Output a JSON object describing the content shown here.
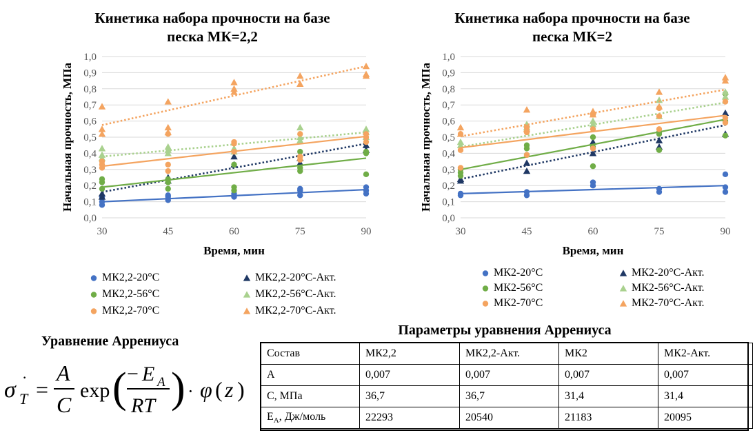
{
  "charts": {
    "left": {
      "title_line1": "Кинетика набора прочности на базе",
      "title_line2": "песка МК=2,2",
      "xlabel": "Время, мин",
      "ylabel": "Начальная прочность, МПа"
    },
    "right": {
      "title_line1": "Кинетика набора прочности на базе",
      "title_line2": "песка МК=2",
      "xlabel": "Время, мин",
      "ylabel": "Начальная прочность, МПа"
    }
  },
  "chart_data": [
    {
      "type": "scatter",
      "title": "Кинетика набора прочности на базе песка МК=2,2",
      "xlabel": "Время, мин",
      "ylabel": "Начальная прочность, МПа",
      "xlim": [
        30,
        90
      ],
      "ylim": [
        0,
        1.0
      ],
      "x_ticks": [
        "30",
        "45",
        "60",
        "75",
        "90"
      ],
      "y_ticks": [
        "0,0",
        "0,1",
        "0,2",
        "0,3",
        "0,4",
        "0,5",
        "0,6",
        "0,7",
        "0,8",
        "0,9",
        "1,0"
      ],
      "grid": true,
      "legend_position": "bottom",
      "series": [
        {
          "name": "МК2,2-20°C",
          "marker": "circle",
          "color": "#4472C4",
          "trend": "solid",
          "x": [
            30,
            30,
            30,
            45,
            45,
            45,
            60,
            60,
            60,
            75,
            75,
            75,
            90,
            90,
            90
          ],
          "y": [
            0.08,
            0.1,
            0.13,
            0.11,
            0.13,
            0.14,
            0.14,
            0.13,
            0.15,
            0.14,
            0.17,
            0.18,
            0.15,
            0.17,
            0.19
          ],
          "trendline": [
            0.1,
            0.175
          ]
        },
        {
          "name": "МК2,2-20°C-Акт.",
          "marker": "triangle",
          "color": "#1F3864",
          "trend": "dotted",
          "x": [
            30,
            30,
            45,
            45,
            60,
            60,
            75,
            75,
            90,
            90
          ],
          "y": [
            0.13,
            0.15,
            0.23,
            0.25,
            0.33,
            0.38,
            0.34,
            0.37,
            0.42,
            0.45
          ],
          "trendline": [
            0.16,
            0.46
          ]
        },
        {
          "name": "МК2,2-56°C",
          "marker": "circle",
          "color": "#70AD47",
          "trend": "solid",
          "x": [
            30,
            30,
            30,
            45,
            45,
            45,
            60,
            60,
            60,
            75,
            75,
            75,
            90,
            90,
            90
          ],
          "y": [
            0.18,
            0.22,
            0.24,
            0.18,
            0.22,
            0.24,
            0.17,
            0.19,
            0.33,
            0.29,
            0.31,
            0.41,
            0.27,
            0.4,
            0.41
          ],
          "trendline": [
            0.19,
            0.37
          ]
        },
        {
          "name": "МК2,2-56°C-Акт.",
          "marker": "triangle",
          "color": "#A9D18E",
          "trend": "dotted",
          "x": [
            30,
            30,
            30,
            45,
            45,
            45,
            60,
            60,
            75,
            75,
            75,
            90,
            90,
            90
          ],
          "y": [
            0.37,
            0.39,
            0.43,
            0.4,
            0.42,
            0.44,
            0.41,
            0.43,
            0.48,
            0.5,
            0.56,
            0.5,
            0.55,
            0.53
          ],
          "trendline": [
            0.38,
            0.53
          ]
        },
        {
          "name": "МК2,2-70°C",
          "marker": "circle",
          "color": "#F4A460",
          "trend": "solid",
          "x": [
            30,
            30,
            30,
            45,
            45,
            45,
            60,
            60,
            60,
            75,
            75,
            75,
            90,
            90,
            90
          ],
          "y": [
            0.31,
            0.33,
            0.35,
            0.29,
            0.33,
            0.52,
            0.41,
            0.46,
            0.47,
            0.36,
            0.38,
            0.52,
            0.47,
            0.5,
            0.52
          ],
          "trendline": [
            0.32,
            0.505
          ]
        },
        {
          "name": "МК2,2-70°C-Акт.",
          "marker": "triangle",
          "color": "#F4A460",
          "trend": "dotted",
          "x": [
            30,
            30,
            30,
            45,
            45,
            45,
            60,
            60,
            60,
            75,
            75,
            90,
            90,
            90
          ],
          "y": [
            0.52,
            0.55,
            0.69,
            0.53,
            0.56,
            0.72,
            0.78,
            0.8,
            0.84,
            0.83,
            0.88,
            0.88,
            0.89,
            0.94
          ],
          "trendline": [
            0.575,
            0.94
          ]
        }
      ]
    },
    {
      "type": "scatter",
      "title": "Кинетика набора прочности на базе песка МК=2",
      "xlabel": "Время, мин",
      "ylabel": "Начальная прочность, МПа",
      "xlim": [
        30,
        90
      ],
      "ylim": [
        0,
        1.0
      ],
      "x_ticks": [
        "30",
        "45",
        "60",
        "75",
        "90"
      ],
      "y_ticks": [
        "0,0",
        "0,1",
        "0,2",
        "0,3",
        "0,4",
        "0,5",
        "0,6",
        "0,7",
        "0,8",
        "0,9",
        "1,0"
      ],
      "grid": true,
      "legend_position": "bottom",
      "series": [
        {
          "name": "МК2-20°C",
          "marker": "circle",
          "color": "#4472C4",
          "trend": "solid",
          "x": [
            30,
            30,
            45,
            45,
            60,
            60,
            75,
            75,
            90,
            90,
            90
          ],
          "y": [
            0.14,
            0.15,
            0.14,
            0.16,
            0.2,
            0.22,
            0.16,
            0.18,
            0.16,
            0.19,
            0.27
          ],
          "trendline": [
            0.15,
            0.2
          ]
        },
        {
          "name": "МК2-20°C-Акт.",
          "marker": "triangle",
          "color": "#1F3864",
          "trend": "dotted",
          "x": [
            30,
            30,
            45,
            45,
            60,
            60,
            75,
            75,
            90,
            90
          ],
          "y": [
            0.23,
            0.24,
            0.29,
            0.34,
            0.4,
            0.47,
            0.44,
            0.48,
            0.52,
            0.65
          ],
          "trendline": [
            0.24,
            0.575
          ]
        },
        {
          "name": "МК2-56°C",
          "marker": "circle",
          "color": "#70AD47",
          "trend": "solid",
          "x": [
            30,
            30,
            30,
            45,
            45,
            45,
            60,
            60,
            60,
            75,
            75,
            75,
            90,
            90,
            90
          ],
          "y": [
            0.26,
            0.28,
            0.3,
            0.39,
            0.43,
            0.45,
            0.32,
            0.44,
            0.5,
            0.42,
            0.52,
            0.53,
            0.51,
            0.6,
            0.77
          ],
          "trendline": [
            0.3,
            0.61
          ]
        },
        {
          "name": "МК2-56°C-Акт.",
          "marker": "triangle",
          "color": "#A9D18E",
          "trend": "dotted",
          "x": [
            30,
            30,
            45,
            45,
            60,
            60,
            75,
            75,
            90,
            90
          ],
          "y": [
            0.45,
            0.47,
            0.56,
            0.58,
            0.58,
            0.6,
            0.63,
            0.73,
            0.75,
            0.78
          ],
          "trendline": [
            0.44,
            0.715
          ]
        },
        {
          "name": "МК2-70°C",
          "marker": "circle",
          "color": "#F4A460",
          "trend": "solid",
          "x": [
            30,
            30,
            30,
            45,
            45,
            45,
            60,
            60,
            60,
            75,
            75,
            75,
            90,
            90,
            90
          ],
          "y": [
            0.31,
            0.42,
            0.52,
            0.39,
            0.53,
            0.56,
            0.43,
            0.55,
            0.64,
            0.55,
            0.63,
            0.68,
            0.59,
            0.62,
            0.72
          ],
          "trendline": [
            0.435,
            0.635
          ]
        },
        {
          "name": "МК2-70°C-Акт.",
          "marker": "triangle",
          "color": "#F4A460",
          "trend": "dotted",
          "x": [
            30,
            30,
            45,
            45,
            60,
            60,
            75,
            75,
            90,
            90
          ],
          "y": [
            0.52,
            0.56,
            0.55,
            0.67,
            0.64,
            0.66,
            0.69,
            0.78,
            0.85,
            0.87
          ],
          "trendline": [
            0.505,
            0.795
          ]
        }
      ]
    }
  ],
  "equation": {
    "title": "Уравнение Аррениуса"
  },
  "table": {
    "title": "Параметры уравнения Аррениуса",
    "header": [
      "Состав",
      "МК2,2",
      "МК2,2-Акт.",
      "МК2",
      "МК2-Акт."
    ],
    "rows": [
      [
        "A",
        "0,007",
        "0,007",
        "0,007",
        "0,007"
      ],
      [
        "C, МПа",
        "36,7",
        "36,7",
        "31,4",
        "31,4"
      ],
      [
        "",
        "22293",
        "20540",
        "21183",
        "20095"
      ]
    ],
    "ea_main": "E",
    "ea_sub": "A",
    "ea_rest": ", Дж/моль"
  }
}
